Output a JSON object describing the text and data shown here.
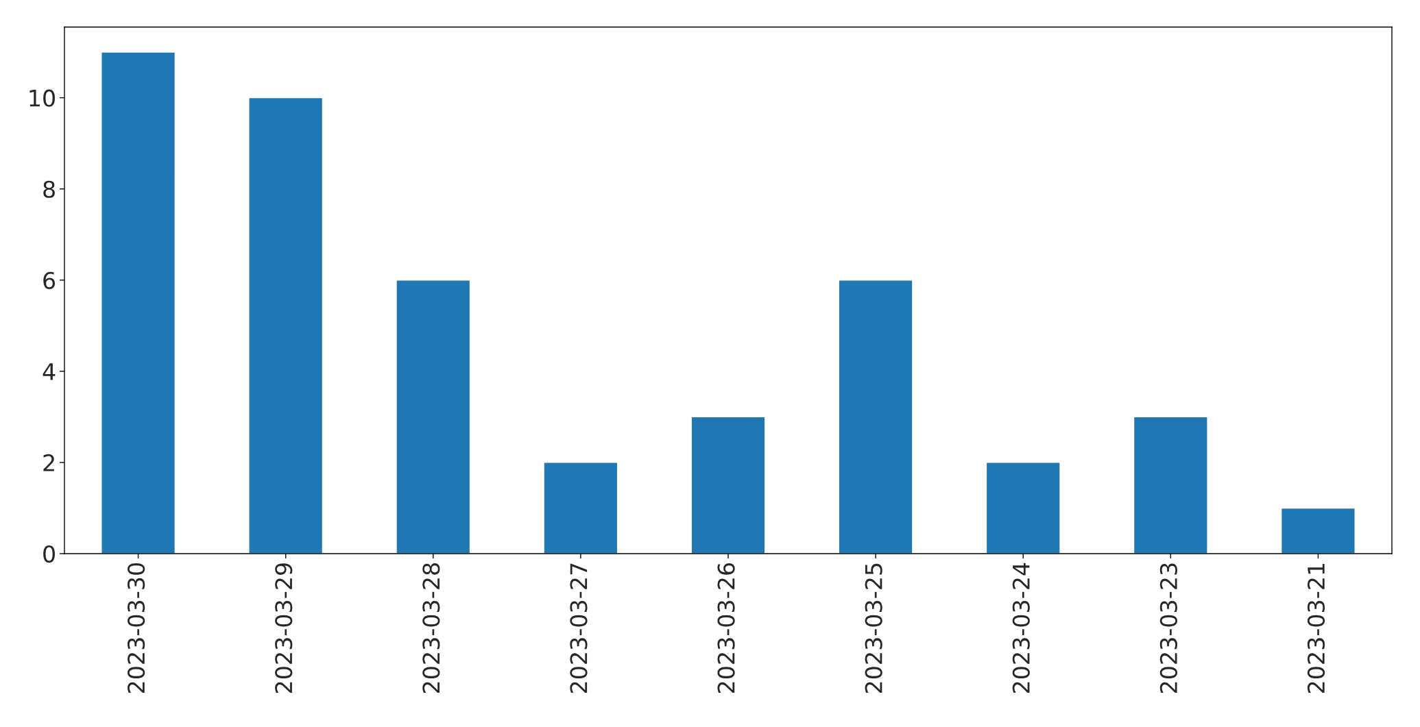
{
  "chart_data": {
    "type": "bar",
    "categories": [
      "2023-03-30",
      "2023-03-29",
      "2023-03-28",
      "2023-03-27",
      "2023-03-26",
      "2023-03-25",
      "2023-03-24",
      "2023-03-23",
      "2023-03-21"
    ],
    "values": [
      11,
      10,
      6,
      2,
      3,
      6,
      2,
      3,
      1
    ],
    "color": "#1f77b4",
    "ylim": [
      0,
      11.55
    ],
    "yticks": [
      0,
      2,
      4,
      6,
      8,
      10
    ],
    "grid": false,
    "legend": false
  }
}
